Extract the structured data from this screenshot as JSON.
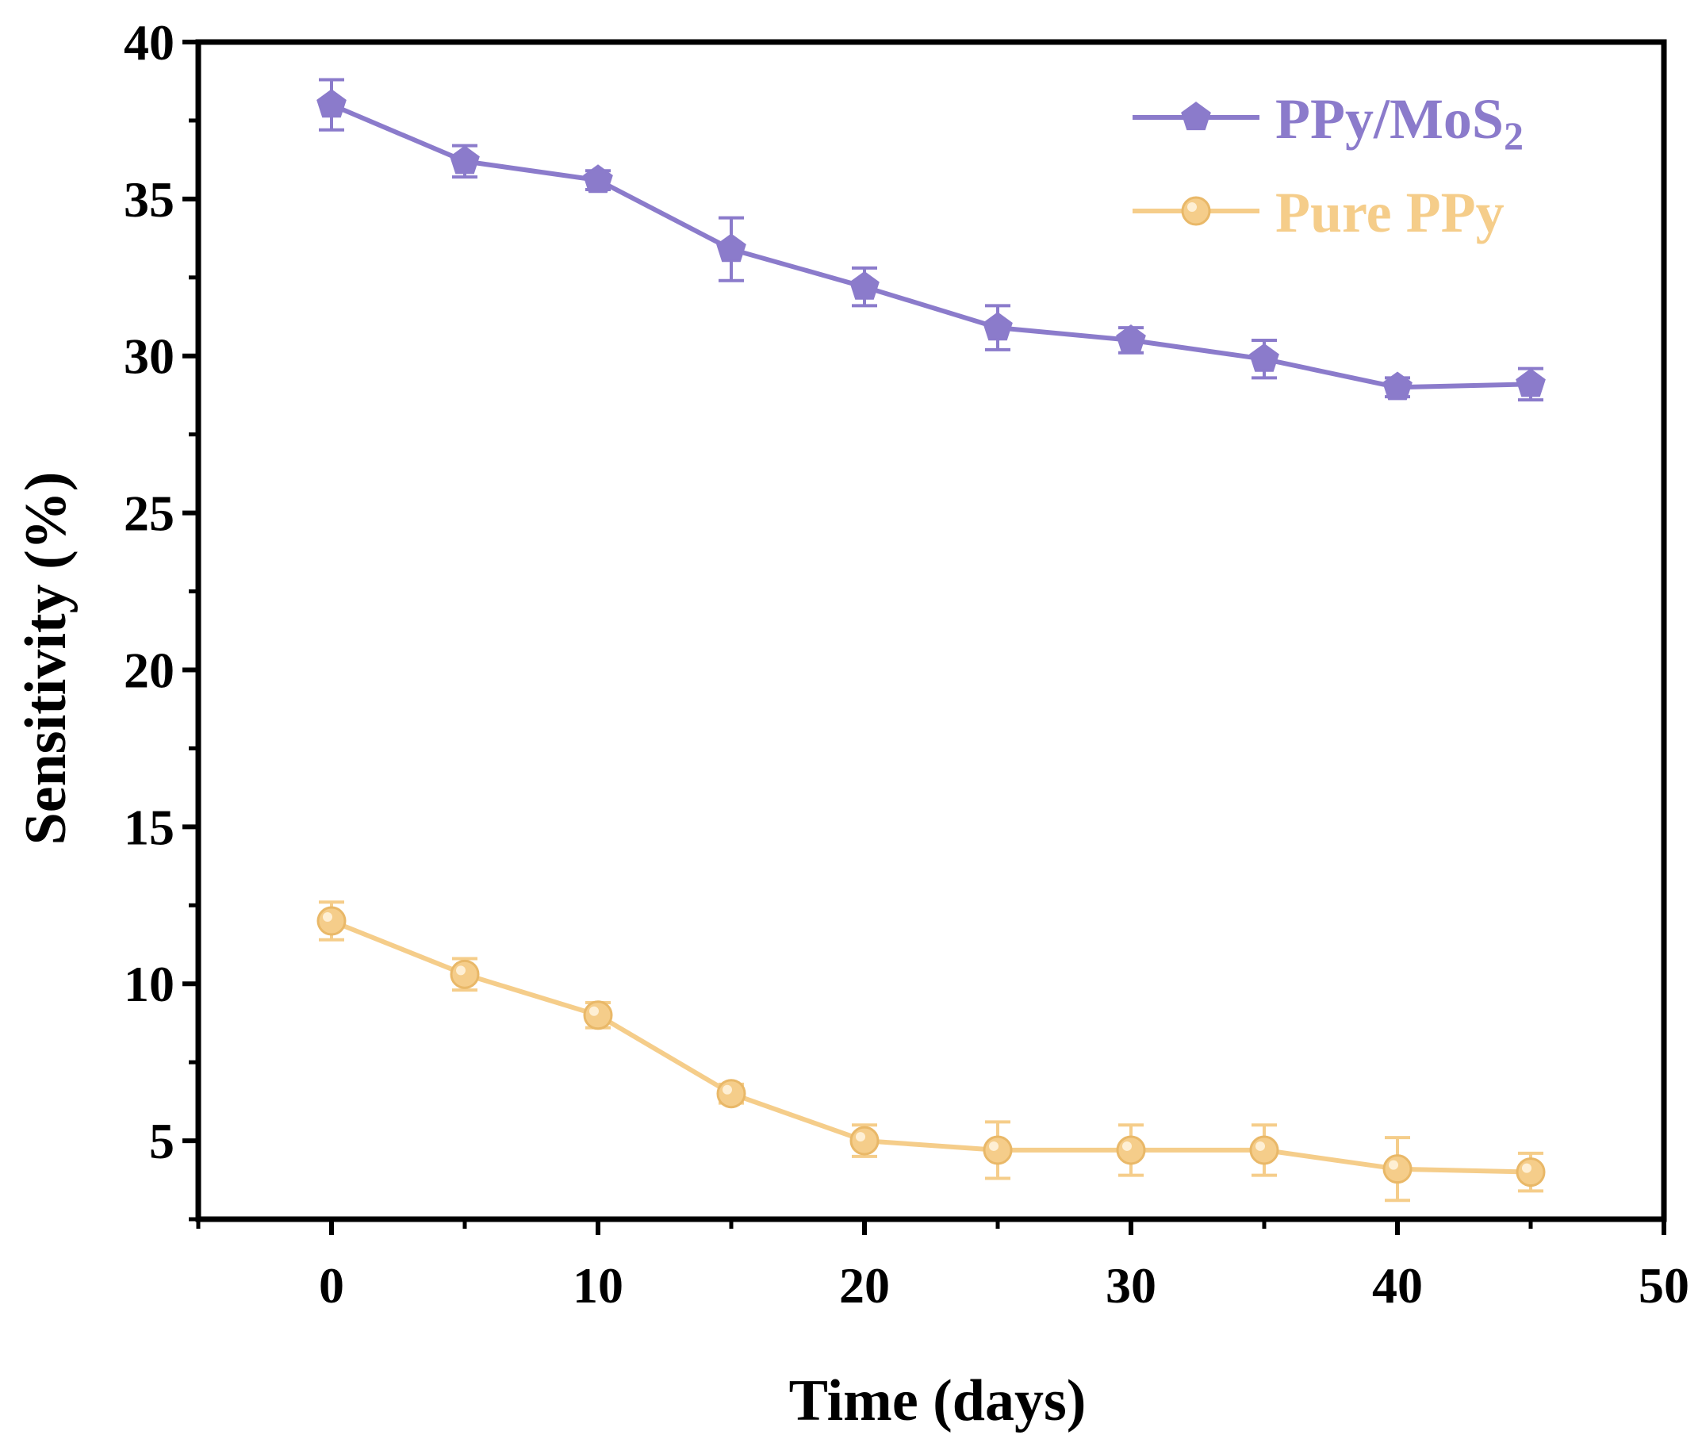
{
  "chart_data": {
    "type": "line",
    "title": "",
    "xlabel": "Time (days)",
    "ylabel": "Sensitivity (%)",
    "xlim": [
      -5,
      50
    ],
    "ylim": [
      2.5,
      40
    ],
    "x_ticks": [
      0,
      10,
      20,
      30,
      40,
      50
    ],
    "y_ticks": [
      5,
      10,
      15,
      20,
      25,
      30,
      35,
      40
    ],
    "grid": false,
    "legend_position": "top-right",
    "series": [
      {
        "name": "PPy/MoS",
        "name_subscript": "2",
        "color": "#8B7BCB",
        "marker": "pentagon",
        "x": [
          0,
          5,
          10,
          15,
          20,
          25,
          30,
          35,
          40,
          45
        ],
        "y": [
          38.0,
          36.2,
          35.6,
          33.4,
          32.2,
          30.9,
          30.5,
          29.9,
          29.0,
          29.1
        ],
        "error": [
          0.8,
          0.5,
          0.3,
          1.0,
          0.6,
          0.7,
          0.4,
          0.6,
          0.3,
          0.5
        ]
      },
      {
        "name": "Pure PPy",
        "name_subscript": "",
        "color": "#F5CD8A",
        "marker": "circle",
        "x": [
          0,
          5,
          10,
          15,
          20,
          25,
          30,
          35,
          40,
          45
        ],
        "y": [
          12.0,
          10.3,
          9.0,
          6.5,
          5.0,
          4.7,
          4.7,
          4.7,
          4.1,
          4.0
        ],
        "error": [
          0.6,
          0.5,
          0.4,
          0.3,
          0.5,
          0.9,
          0.8,
          0.8,
          1.0,
          0.6
        ]
      }
    ]
  }
}
